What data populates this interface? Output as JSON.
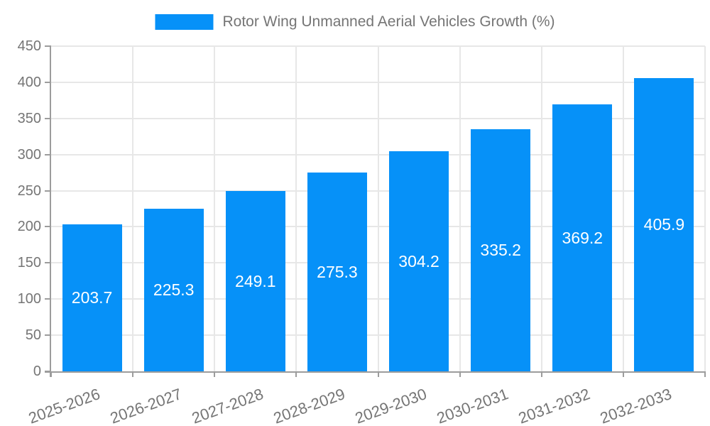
{
  "legend": {
    "label": "Rotor Wing Unmanned Aerial Vehicles Growth (%)",
    "color": "#0691f8",
    "text_color": "#757575"
  },
  "chart_data": {
    "type": "bar",
    "title": "Rotor Wing Unmanned Aerial Vehicles Growth (%)",
    "xlabel": "",
    "ylabel": "",
    "categories": [
      "2025-2026",
      "2026-2027",
      "2027-2028",
      "2028-2029",
      "2029-2030",
      "2030-2031",
      "2031-2032",
      "2032-2033"
    ],
    "values": [
      203.7,
      225.3,
      249.1,
      275.3,
      304.2,
      335.2,
      369.2,
      405.9
    ],
    "ylim": [
      0,
      450
    ],
    "yticks": [
      0,
      50,
      100,
      150,
      200,
      250,
      300,
      350,
      400,
      450
    ],
    "grid": true,
    "legend_position": "top-center",
    "bar_color": "#0691f8",
    "value_label_color": "#ffffff",
    "grid_color": "#e7e7e7",
    "axis_color": "#9c9c9c",
    "tick_label_color": "#757575"
  }
}
